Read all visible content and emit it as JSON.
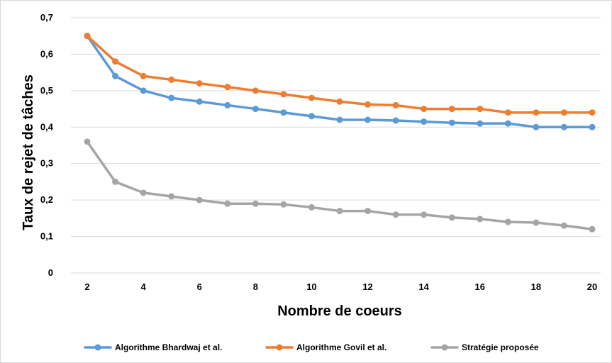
{
  "chart_data": {
    "type": "line",
    "title": "",
    "xlabel": "Nombre de coeurs",
    "ylabel": "Taux de rejet de tâches",
    "x": [
      2,
      3,
      4,
      5,
      6,
      7,
      8,
      9,
      10,
      11,
      12,
      13,
      14,
      15,
      16,
      17,
      18,
      19,
      20
    ],
    "xlim": [
      2,
      20
    ],
    "ylim": [
      0,
      0.7
    ],
    "x_ticks": [
      "2",
      "4",
      "6",
      "8",
      "10",
      "12",
      "14",
      "16",
      "18",
      "20"
    ],
    "y_ticks": [
      "0",
      "0,1",
      "0,2",
      "0,3",
      "0,4",
      "0,5",
      "0,6",
      "0,7"
    ],
    "grid": "horizontal",
    "legend_position": "bottom",
    "series": [
      {
        "name": "Algorithme Bhardwaj et al.",
        "color": "#5B9BD5",
        "values": [
          0.65,
          0.54,
          0.5,
          0.48,
          0.47,
          0.46,
          0.45,
          0.44,
          0.43,
          0.42,
          0.42,
          0.418,
          0.415,
          0.412,
          0.41,
          0.41,
          0.4,
          0.4,
          0.4
        ]
      },
      {
        "name": "Algorithme Govil et al.",
        "color": "#ED7D31",
        "values": [
          0.65,
          0.58,
          0.54,
          0.53,
          0.52,
          0.51,
          0.5,
          0.49,
          0.48,
          0.47,
          0.462,
          0.46,
          0.45,
          0.45,
          0.45,
          0.44,
          0.44,
          0.44,
          0.44
        ]
      },
      {
        "name": "Stratégie proposée",
        "color": "#A5A5A5",
        "values": [
          0.36,
          0.25,
          0.22,
          0.21,
          0.2,
          0.19,
          0.19,
          0.188,
          0.18,
          0.17,
          0.17,
          0.16,
          0.16,
          0.152,
          0.148,
          0.14,
          0.138,
          0.13,
          0.12
        ]
      }
    ]
  }
}
